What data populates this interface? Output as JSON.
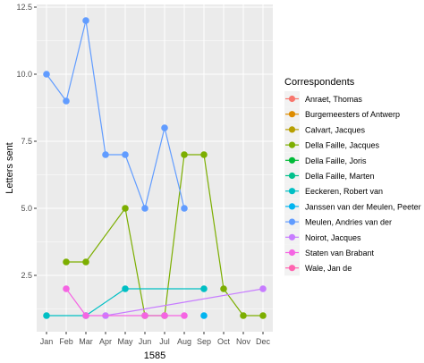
{
  "chart_data": {
    "type": "line",
    "xlabel": "1585",
    "ylabel": "Letters sent",
    "categories": [
      "Jan",
      "Feb",
      "Mar",
      "Apr",
      "May",
      "Jun",
      "Jul",
      "Aug",
      "Sep",
      "Oct",
      "Nov",
      "Dec"
    ],
    "y_ticks": [
      "2.5",
      "5.0",
      "7.5",
      "10.0",
      "12.5"
    ],
    "ylim": [
      0.4,
      12.6
    ],
    "legend_title": "Correspondents",
    "legend_position": "right",
    "grid": true,
    "series": [
      {
        "name": "Anraet, Thomas",
        "color": "#F8766D",
        "points": []
      },
      {
        "name": "Burgemeesters of Antwerp",
        "color": "#DE8C00",
        "points": []
      },
      {
        "name": "Calvart, Jacques",
        "color": "#B79F00",
        "points": []
      },
      {
        "name": "Della Faille, Jacques",
        "color": "#7CAE00",
        "points": [
          [
            "Feb",
            3
          ],
          [
            "Mar",
            3
          ],
          [
            "May",
            5
          ],
          [
            "Jun",
            1
          ],
          [
            "Jul",
            1
          ],
          [
            "Aug",
            7
          ],
          [
            "Sep",
            7
          ],
          [
            "Oct",
            2
          ],
          [
            "Nov",
            1
          ],
          [
            "Dec",
            1
          ]
        ]
      },
      {
        "name": "Della Faille, Joris",
        "color": "#00BA38",
        "points": []
      },
      {
        "name": "Della Faille, Marten",
        "color": "#00C08B",
        "points": []
      },
      {
        "name": "Eeckeren, Robert van",
        "color": "#00BFC4",
        "points": [
          [
            "Jan",
            1
          ],
          [
            "Mar",
            1
          ],
          [
            "May",
            2
          ],
          [
            "Sep",
            2
          ]
        ]
      },
      {
        "name": "Janssen van der Meulen, Peeter",
        "color": "#00B4F0",
        "points": [
          [
            "Sep",
            1
          ]
        ]
      },
      {
        "name": "Meulen, Andries van der",
        "color": "#619CFF",
        "points": [
          [
            "Jan",
            10
          ],
          [
            "Feb",
            9
          ],
          [
            "Mar",
            12
          ],
          [
            "Apr",
            7
          ],
          [
            "May",
            7
          ],
          [
            "Jun",
            5
          ],
          [
            "Jul",
            8
          ],
          [
            "Aug",
            5
          ]
        ]
      },
      {
        "name": "Noirot, Jacques",
        "color": "#C77CFF",
        "points": [
          [
            "Apr",
            1
          ],
          [
            "Dec",
            2
          ]
        ]
      },
      {
        "name": "Staten van Brabant",
        "color": "#F564E3",
        "points": [
          [
            "Feb",
            2
          ],
          [
            "Mar",
            1
          ],
          [
            "Jun",
            1
          ],
          [
            "Jul",
            1
          ],
          [
            "Aug",
            1
          ]
        ]
      },
      {
        "name": "Wale, Jan de",
        "color": "#FF64B0",
        "points": []
      }
    ]
  }
}
